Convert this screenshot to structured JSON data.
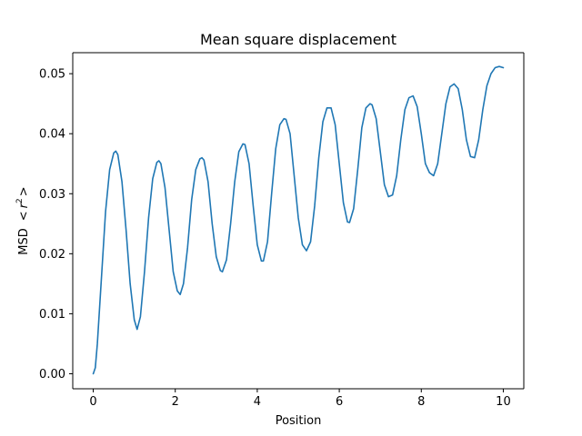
{
  "chart_data": {
    "type": "line",
    "title": "Mean square displacement",
    "xlabel": "Position",
    "ylabel": "MSD",
    "ylabel_math": "r",
    "ylabel_sup": "2",
    "xlim": [
      -0.5,
      10.5
    ],
    "ylim": [
      -0.0025,
      0.0535
    ],
    "xticks": [
      0,
      2,
      4,
      6,
      8,
      10
    ],
    "xtick_labels": [
      "0",
      "2",
      "4",
      "6",
      "8",
      "10"
    ],
    "yticks": [
      0.0,
      0.01,
      0.02,
      0.03,
      0.04,
      0.05
    ],
    "ytick_labels": [
      "0.00",
      "0.01",
      "0.02",
      "0.03",
      "0.04",
      "0.05"
    ],
    "grid": false,
    "legend": "none",
    "line_color": "#1f77b4",
    "series": [
      {
        "points": [
          [
            0.0,
            0.0
          ],
          [
            0.05,
            0.001
          ],
          [
            0.1,
            0.005
          ],
          [
            0.2,
            0.016
          ],
          [
            0.3,
            0.027
          ],
          [
            0.4,
            0.034
          ],
          [
            0.5,
            0.0368
          ],
          [
            0.55,
            0.0371
          ],
          [
            0.6,
            0.0365
          ],
          [
            0.7,
            0.032
          ],
          [
            0.8,
            0.024
          ],
          [
            0.9,
            0.015
          ],
          [
            1.0,
            0.009
          ],
          [
            1.07,
            0.0074
          ],
          [
            1.15,
            0.0095
          ],
          [
            1.25,
            0.017
          ],
          [
            1.35,
            0.026
          ],
          [
            1.45,
            0.0325
          ],
          [
            1.55,
            0.0352
          ],
          [
            1.6,
            0.0355
          ],
          [
            1.65,
            0.035
          ],
          [
            1.75,
            0.031
          ],
          [
            1.85,
            0.024
          ],
          [
            1.95,
            0.017
          ],
          [
            2.05,
            0.0138
          ],
          [
            2.12,
            0.0132
          ],
          [
            2.2,
            0.015
          ],
          [
            2.3,
            0.021
          ],
          [
            2.4,
            0.029
          ],
          [
            2.5,
            0.034
          ],
          [
            2.6,
            0.0358
          ],
          [
            2.65,
            0.036
          ],
          [
            2.7,
            0.0356
          ],
          [
            2.8,
            0.032
          ],
          [
            2.9,
            0.025
          ],
          [
            3.0,
            0.0195
          ],
          [
            3.1,
            0.0172
          ],
          [
            3.15,
            0.017
          ],
          [
            3.25,
            0.019
          ],
          [
            3.35,
            0.025
          ],
          [
            3.45,
            0.032
          ],
          [
            3.55,
            0.037
          ],
          [
            3.65,
            0.0383
          ],
          [
            3.7,
            0.0382
          ],
          [
            3.8,
            0.035
          ],
          [
            3.9,
            0.028
          ],
          [
            4.0,
            0.0215
          ],
          [
            4.1,
            0.0188
          ],
          [
            4.15,
            0.0188
          ],
          [
            4.25,
            0.022
          ],
          [
            4.35,
            0.03
          ],
          [
            4.45,
            0.0375
          ],
          [
            4.55,
            0.0415
          ],
          [
            4.65,
            0.0425
          ],
          [
            4.7,
            0.0424
          ],
          [
            4.8,
            0.04
          ],
          [
            4.9,
            0.033
          ],
          [
            5.0,
            0.026
          ],
          [
            5.1,
            0.0215
          ],
          [
            5.2,
            0.0205
          ],
          [
            5.3,
            0.022
          ],
          [
            5.4,
            0.028
          ],
          [
            5.5,
            0.036
          ],
          [
            5.6,
            0.042
          ],
          [
            5.7,
            0.0443
          ],
          [
            5.8,
            0.0443
          ],
          [
            5.9,
            0.0415
          ],
          [
            6.0,
            0.035
          ],
          [
            6.1,
            0.0285
          ],
          [
            6.2,
            0.0253
          ],
          [
            6.25,
            0.0252
          ],
          [
            6.35,
            0.0275
          ],
          [
            6.45,
            0.034
          ],
          [
            6.55,
            0.041
          ],
          [
            6.65,
            0.0443
          ],
          [
            6.75,
            0.045
          ],
          [
            6.8,
            0.0448
          ],
          [
            6.9,
            0.0425
          ],
          [
            7.0,
            0.037
          ],
          [
            7.1,
            0.0315
          ],
          [
            7.2,
            0.0295
          ],
          [
            7.3,
            0.0298
          ],
          [
            7.4,
            0.033
          ],
          [
            7.5,
            0.039
          ],
          [
            7.6,
            0.044
          ],
          [
            7.7,
            0.046
          ],
          [
            7.8,
            0.0463
          ],
          [
            7.9,
            0.0445
          ],
          [
            8.0,
            0.04
          ],
          [
            8.1,
            0.035
          ],
          [
            8.2,
            0.0335
          ],
          [
            8.3,
            0.033
          ],
          [
            8.4,
            0.035
          ],
          [
            8.5,
            0.04
          ],
          [
            8.6,
            0.045
          ],
          [
            8.7,
            0.0478
          ],
          [
            8.8,
            0.0483
          ],
          [
            8.9,
            0.0475
          ],
          [
            9.0,
            0.044
          ],
          [
            9.1,
            0.039
          ],
          [
            9.2,
            0.0362
          ],
          [
            9.3,
            0.036
          ],
          [
            9.4,
            0.039
          ],
          [
            9.5,
            0.044
          ],
          [
            9.6,
            0.048
          ],
          [
            9.7,
            0.05
          ],
          [
            9.8,
            0.051
          ],
          [
            9.9,
            0.0512
          ],
          [
            10.0,
            0.051
          ]
        ]
      }
    ]
  }
}
